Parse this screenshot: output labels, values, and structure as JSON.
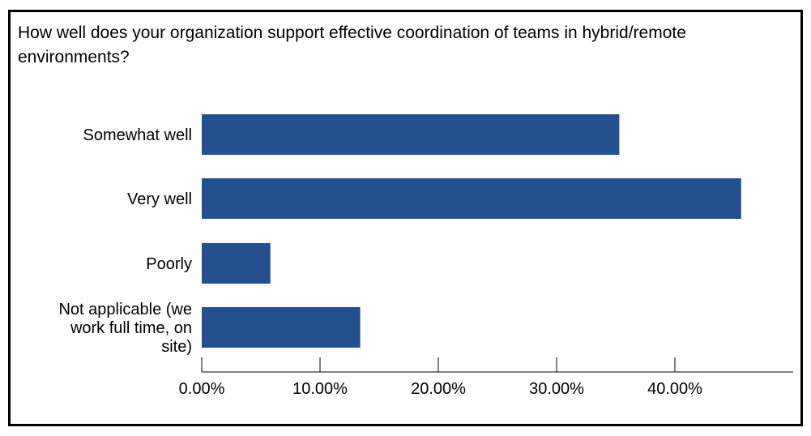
{
  "chart_data": {
    "type": "bar",
    "orientation": "horizontal",
    "title": "How well does your organization support effective coordination of teams in hybrid/remote environments?",
    "categories": [
      "Somewhat well",
      "Very well",
      "Poorly",
      "Not applicable (we work full time, on site)"
    ],
    "category_lines": [
      [
        "Somewhat well"
      ],
      [
        "Very well"
      ],
      [
        "Poorly"
      ],
      [
        "Not applicable (we",
        "work full time, on",
        "site)"
      ]
    ],
    "values": [
      35.3,
      45.6,
      5.8,
      13.4
    ],
    "value_unit": "%",
    "xlim": [
      0,
      50
    ],
    "xticks": [
      0,
      10,
      20,
      30,
      40
    ],
    "xtick_labels": [
      "0.00%",
      "10.00%",
      "20.00%",
      "30.00%",
      "40.00%"
    ],
    "xlabel": "",
    "ylabel": "",
    "grid": false,
    "legend": false,
    "bar_color": "#24508f"
  }
}
